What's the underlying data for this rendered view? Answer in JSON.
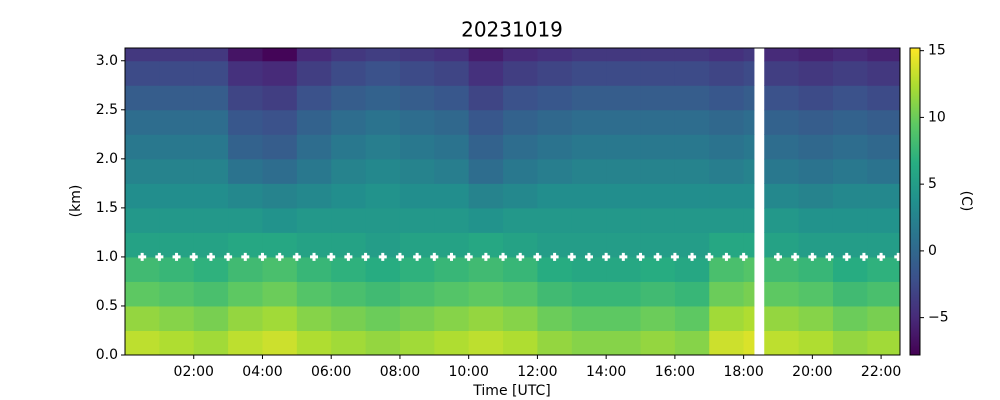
{
  "chart_data": {
    "type": "heatmap",
    "title": "20231019",
    "xlabel": "Time [UTC]",
    "ylabel": "(km)",
    "colorbar_label": "(C)",
    "colormap": "viridis",
    "x": [
      0,
      1,
      2,
      3,
      4,
      5,
      6,
      7,
      8,
      9,
      10,
      11,
      12,
      13,
      14,
      15,
      16,
      17,
      18,
      18.3,
      18.6,
      19.6,
      20.6,
      21.6
    ],
    "y": [
      0,
      0.25,
      0.5,
      0.75,
      1.0,
      1.25,
      1.5,
      1.75,
      2.0,
      2.25,
      2.5,
      2.75,
      3.0
    ],
    "z": [
      [
        13,
        12.5,
        12,
        13,
        13.5,
        12.5,
        12,
        11.5,
        12,
        12.5,
        13,
        12.5,
        11.5,
        11,
        11,
        11.5,
        11,
        13.5,
        14,
        null,
        13,
        12.5,
        11.5,
        12
      ],
      [
        11.5,
        11,
        10.5,
        11.5,
        12,
        11,
        10.5,
        10,
        10.5,
        11,
        11.5,
        11,
        10,
        9.5,
        9.5,
        10,
        9.5,
        12,
        12.5,
        null,
        11.5,
        11,
        10,
        10.5
      ],
      [
        9.5,
        9,
        8.5,
        9.5,
        10,
        9,
        8.5,
        8,
        8.5,
        9,
        9.5,
        9,
        8,
        7.5,
        7.5,
        8,
        7.5,
        10,
        10.5,
        null,
        9.5,
        9,
        8,
        8.5
      ],
      [
        8,
        7.5,
        7,
        8,
        8.5,
        7.5,
        7,
        6.5,
        7,
        7.5,
        8,
        7.5,
        6.5,
        6,
        6,
        6.5,
        6,
        8.5,
        9,
        null,
        8,
        7.5,
        6.5,
        7
      ],
      [
        5.5,
        5.5,
        5.5,
        6,
        6,
        5.5,
        5.5,
        5,
        5.5,
        5.5,
        6,
        5.5,
        5,
        5,
        5,
        5,
        5,
        6,
        6,
        null,
        5.5,
        5,
        5,
        5
      ],
      [
        4.5,
        4.5,
        4.5,
        4.5,
        4,
        4.5,
        4.5,
        4.5,
        4.5,
        4.5,
        4,
        4.5,
        4.5,
        4.5,
        4.5,
        4.5,
        4.5,
        4.5,
        4.5,
        null,
        4.5,
        4,
        4,
        4
      ],
      [
        3.5,
        3.5,
        3.5,
        3,
        2.5,
        3,
        3.5,
        4,
        3.5,
        3.5,
        2.5,
        3,
        3.5,
        3.5,
        3.5,
        3.5,
        3.5,
        3.5,
        3.5,
        null,
        3,
        2.5,
        3,
        3
      ],
      [
        2.5,
        2.5,
        2.5,
        1,
        0.5,
        1.5,
        2.5,
        3,
        2.5,
        2,
        0.5,
        1.5,
        2,
        2.5,
        2.5,
        2.5,
        2.5,
        2,
        2.5,
        null,
        1.5,
        1,
        1.5,
        1
      ],
      [
        1.5,
        1.5,
        1.5,
        -0.5,
        -1,
        0.5,
        1.5,
        2,
        1.5,
        1,
        -0.5,
        0.5,
        1,
        1.5,
        1.5,
        1.5,
        1.5,
        1,
        1.5,
        null,
        0.5,
        0,
        0.5,
        0
      ],
      [
        0.5,
        0.5,
        0.5,
        -1.5,
        -2,
        -0.5,
        0.5,
        1,
        0.5,
        0,
        -1.5,
        -0.5,
        0,
        0.5,
        0.5,
        0.5,
        0.5,
        0,
        0.5,
        null,
        -0.5,
        -1,
        -0.5,
        -1
      ],
      [
        -1,
        -1,
        -1,
        -3,
        -3.5,
        -2,
        -1,
        -0.5,
        -1,
        -1.5,
        -3,
        -2,
        -1.5,
        -1,
        -1,
        -1,
        -1,
        -1.5,
        -1,
        null,
        -2,
        -2.5,
        -2,
        -2.5
      ],
      [
        -2.5,
        -2.5,
        -2.5,
        -4.5,
        -5,
        -3.5,
        -2.5,
        -2,
        -2.5,
        -3,
        -4.5,
        -3.5,
        -3,
        -2.5,
        -2.5,
        -2.5,
        -2.5,
        -3,
        -2.5,
        null,
        -3.5,
        -4,
        -3.5,
        -4
      ],
      [
        -4,
        -4,
        -4,
        -6.5,
        -7.5,
        -5,
        -4,
        -3.5,
        -4,
        -4.5,
        -6,
        -5,
        -4.5,
        -4,
        -4,
        -4,
        -4,
        -4.5,
        -4,
        null,
        -5,
        -5.5,
        -5,
        -5.5
      ]
    ],
    "zlim": [
      -7.8,
      15.2
    ],
    "zticks": [
      {
        "value": -5,
        "label": "−5"
      },
      0,
      5,
      10,
      15
    ],
    "xlim": [
      0,
      22.55
    ],
    "xticks": [
      {
        "value": 2,
        "label": "02:00"
      },
      {
        "value": 4,
        "label": "04:00"
      },
      {
        "value": 6,
        "label": "06:00"
      },
      {
        "value": 8,
        "label": "08:00"
      },
      {
        "value": 10,
        "label": "10:00"
      },
      {
        "value": 12,
        "label": "12:00"
      },
      {
        "value": 14,
        "label": "14:00"
      },
      {
        "value": 16,
        "label": "16:00"
      },
      {
        "value": 18,
        "label": "18:00"
      },
      {
        "value": 20,
        "label": "20:00"
      },
      {
        "value": 22,
        "label": "22:00"
      }
    ],
    "ylim": [
      0,
      3.13
    ],
    "yticks": [
      {
        "value": 0,
        "label": "0.0"
      },
      0.5,
      {
        "value": 1,
        "label": "1.0"
      },
      1.5,
      {
        "value": 2,
        "label": "2.0"
      },
      2.5,
      {
        "value": 3,
        "label": "3.0"
      }
    ],
    "markers": {
      "color": "#ffffff",
      "x": [
        0.5,
        1,
        1.5,
        2,
        2.5,
        3,
        3.5,
        4,
        4.5,
        5,
        5.5,
        6,
        6.5,
        7,
        7.5,
        8,
        8.5,
        9,
        9.5,
        10,
        10.5,
        11,
        11.5,
        12,
        12.5,
        13,
        13.5,
        14,
        14.5,
        15,
        15.5,
        16,
        16.5,
        17,
        17.5,
        18,
        19,
        19.5,
        20,
        20.5,
        21,
        21.5,
        22,
        22.5
      ],
      "values": [
        1,
        1,
        1,
        1,
        1,
        1,
        1,
        1,
        1,
        1,
        1,
        1,
        1,
        1,
        1,
        1,
        1,
        1,
        1,
        1,
        1,
        1,
        1,
        1,
        1,
        1,
        1,
        1,
        1,
        1,
        1,
        1,
        1,
        1,
        1,
        1,
        1,
        1,
        1,
        1,
        1,
        1,
        1,
        1
      ]
    }
  }
}
